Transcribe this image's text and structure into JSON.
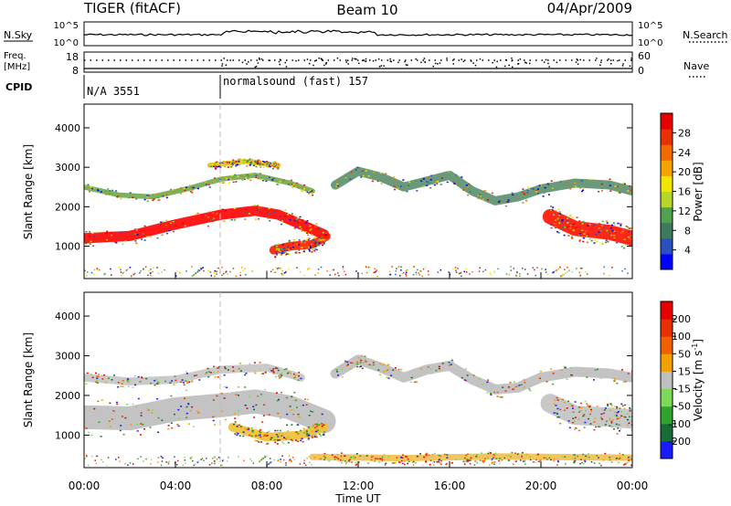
{
  "header": {
    "radar": "TIGER (fitACF)",
    "beam": "Beam 10",
    "date": "04/Apr/2009"
  },
  "sky_panel": {
    "left_label": "N.Sky",
    "right_label": "N.Search",
    "left_ticks": [
      "10^5",
      "10^0"
    ],
    "right_ticks": [
      "10^5",
      "10^0"
    ]
  },
  "freq_panel": {
    "left_label_line1": "Freq.",
    "left_label_line2": "[MHz]",
    "left_ticks": [
      "18",
      "8"
    ],
    "right_label": "Nave",
    "right_ticks": [
      "60",
      "0"
    ]
  },
  "cpid": {
    "label": "CPID",
    "segments": [
      {
        "text": "N/A 3551",
        "start_hour": 0
      },
      {
        "text": "normalsound (fast) 157",
        "start_hour": 6
      }
    ]
  },
  "chart_data": [
    {
      "type": "heatmap",
      "name": "power-panel",
      "quantity": "Power",
      "ylabel": "Slant Range [km]",
      "xlabel": "",
      "xlim_hours": [
        0,
        24
      ],
      "ylim_km": [
        180,
        4600
      ],
      "yticks": [
        "1000",
        "2000",
        "3000",
        "4000"
      ],
      "colorbar": {
        "label": "Power [dB]",
        "ticks": [
          "4",
          "8",
          "12",
          "16",
          "20",
          "24",
          "28"
        ],
        "colors": [
          "#0000ff",
          "#2b4fbf",
          "#3d7a5e",
          "#4fa34f",
          "#b8d62a",
          "#f2e600",
          "#f5a300",
          "#f26a00",
          "#e83000",
          "#e60000"
        ]
      },
      "bands": [
        {
          "points": [
            [
              0,
              1200
            ],
            [
              2,
              1260
            ],
            [
              4,
              1550
            ],
            [
              6,
              1800
            ],
            [
              7.5,
              1900
            ],
            [
              8.5,
              1800
            ],
            [
              9.5,
              1550
            ],
            [
              10.5,
              1300
            ]
          ],
          "width": 260,
          "color": "#ff0000"
        },
        {
          "points": [
            [
              8.3,
              900
            ],
            [
              9,
              1000
            ],
            [
              10,
              1050
            ],
            [
              10.6,
              1250
            ]
          ],
          "width": 220,
          "color": "#ff1a00"
        },
        {
          "points": [
            [
              0,
              2500
            ],
            [
              1.5,
              2300
            ],
            [
              3,
              2250
            ],
            [
              4.5,
              2450
            ],
            [
              6,
              2700
            ],
            [
              7.5,
              2800
            ],
            [
              9,
              2600
            ],
            [
              10,
              2400
            ]
          ],
          "width": 130,
          "color": "#6fa84c"
        },
        {
          "points": [
            [
              5.5,
              3050
            ],
            [
              7,
              3150
            ],
            [
              8.5,
              3050
            ]
          ],
          "width": 120,
          "color": "#e0c000"
        },
        {
          "points": [
            [
              11,
              2550
            ],
            [
              12,
              2900
            ],
            [
              13,
              2750
            ],
            [
              14,
              2500
            ],
            [
              15,
              2650
            ],
            [
              16,
              2800
            ],
            [
              17,
              2400
            ],
            [
              18,
              2150
            ],
            [
              19,
              2250
            ],
            [
              20,
              2450
            ],
            [
              21.5,
              2600
            ],
            [
              23,
              2550
            ],
            [
              24,
              2400
            ]
          ],
          "width": 230,
          "color": "#5a8f6a"
        },
        {
          "points": [
            [
              20.4,
              1750
            ],
            [
              21.5,
              1450
            ],
            [
              23,
              1350
            ],
            [
              24,
              1200
            ]
          ],
          "width": 380,
          "color": "#ff1000"
        }
      ]
    },
    {
      "type": "heatmap",
      "name": "velocity-panel",
      "quantity": "Velocity",
      "ylabel": "Slant Range [km]",
      "xlabel": "Time UT",
      "xlim_hours": [
        0,
        24
      ],
      "ylim_km": [
        180,
        4600
      ],
      "yticks": [
        "1000",
        "2000",
        "3000",
        "4000"
      ],
      "xticks": [
        "00:00",
        "04:00",
        "08:00",
        "12:00",
        "16:00",
        "20:00",
        "00:00"
      ],
      "colorbar": {
        "label": "Velocity [m s-1]",
        "label_main": "Velocity [m s",
        "label_exp": "-1",
        "label_close": "]",
        "ticks": [
          "200",
          "100",
          "50",
          "15",
          "-15",
          "-50",
          "-100",
          "-200"
        ],
        "colors": [
          "#1a1aff",
          "#1a6b3a",
          "#2fa32f",
          "#7ed957",
          "#bfbfbf",
          "#f0a000",
          "#f06000",
          "#e63000",
          "#e60000"
        ]
      },
      "bands": [
        {
          "points": [
            [
              0,
              1450
            ],
            [
              2,
              1420
            ],
            [
              4,
              1650
            ],
            [
              6,
              1750
            ],
            [
              7.5,
              1850
            ],
            [
              9,
              1700
            ],
            [
              10.5,
              1350
            ]
          ],
          "width": 600,
          "color": "#bdbdbd"
        },
        {
          "points": [
            [
              0,
              2450
            ],
            [
              2,
              2350
            ],
            [
              4,
              2400
            ],
            [
              6,
              2650
            ],
            [
              8,
              2700
            ],
            [
              9.5,
              2450
            ]
          ],
          "width": 200,
          "color": "#c4c4c4"
        },
        {
          "points": [
            [
              11,
              2550
            ],
            [
              12,
              2900
            ],
            [
              13,
              2700
            ],
            [
              14,
              2450
            ],
            [
              15,
              2650
            ],
            [
              16,
              2750
            ],
            [
              17,
              2400
            ],
            [
              18,
              2150
            ],
            [
              19,
              2200
            ],
            [
              20,
              2450
            ],
            [
              21.5,
              2600
            ],
            [
              23,
              2550
            ],
            [
              24,
              2450
            ]
          ],
          "width": 250,
          "color": "#bdbdbd"
        },
        {
          "points": [
            [
              20.4,
              1800
            ],
            [
              21.5,
              1500
            ],
            [
              23,
              1450
            ],
            [
              24,
              1400
            ]
          ],
          "width": 480,
          "color": "#c2c2c2"
        },
        {
          "points": [
            [
              6.5,
              1200
            ],
            [
              8,
              950
            ],
            [
              9.5,
              1000
            ],
            [
              10.5,
              1200
            ]
          ],
          "width": 220,
          "color": "#f0c030"
        },
        {
          "points": [
            [
              10,
              450
            ],
            [
              14,
              420
            ],
            [
              18,
              460
            ],
            [
              24,
              430
            ]
          ],
          "width": 160,
          "color": "#f2c04a"
        }
      ]
    }
  ]
}
